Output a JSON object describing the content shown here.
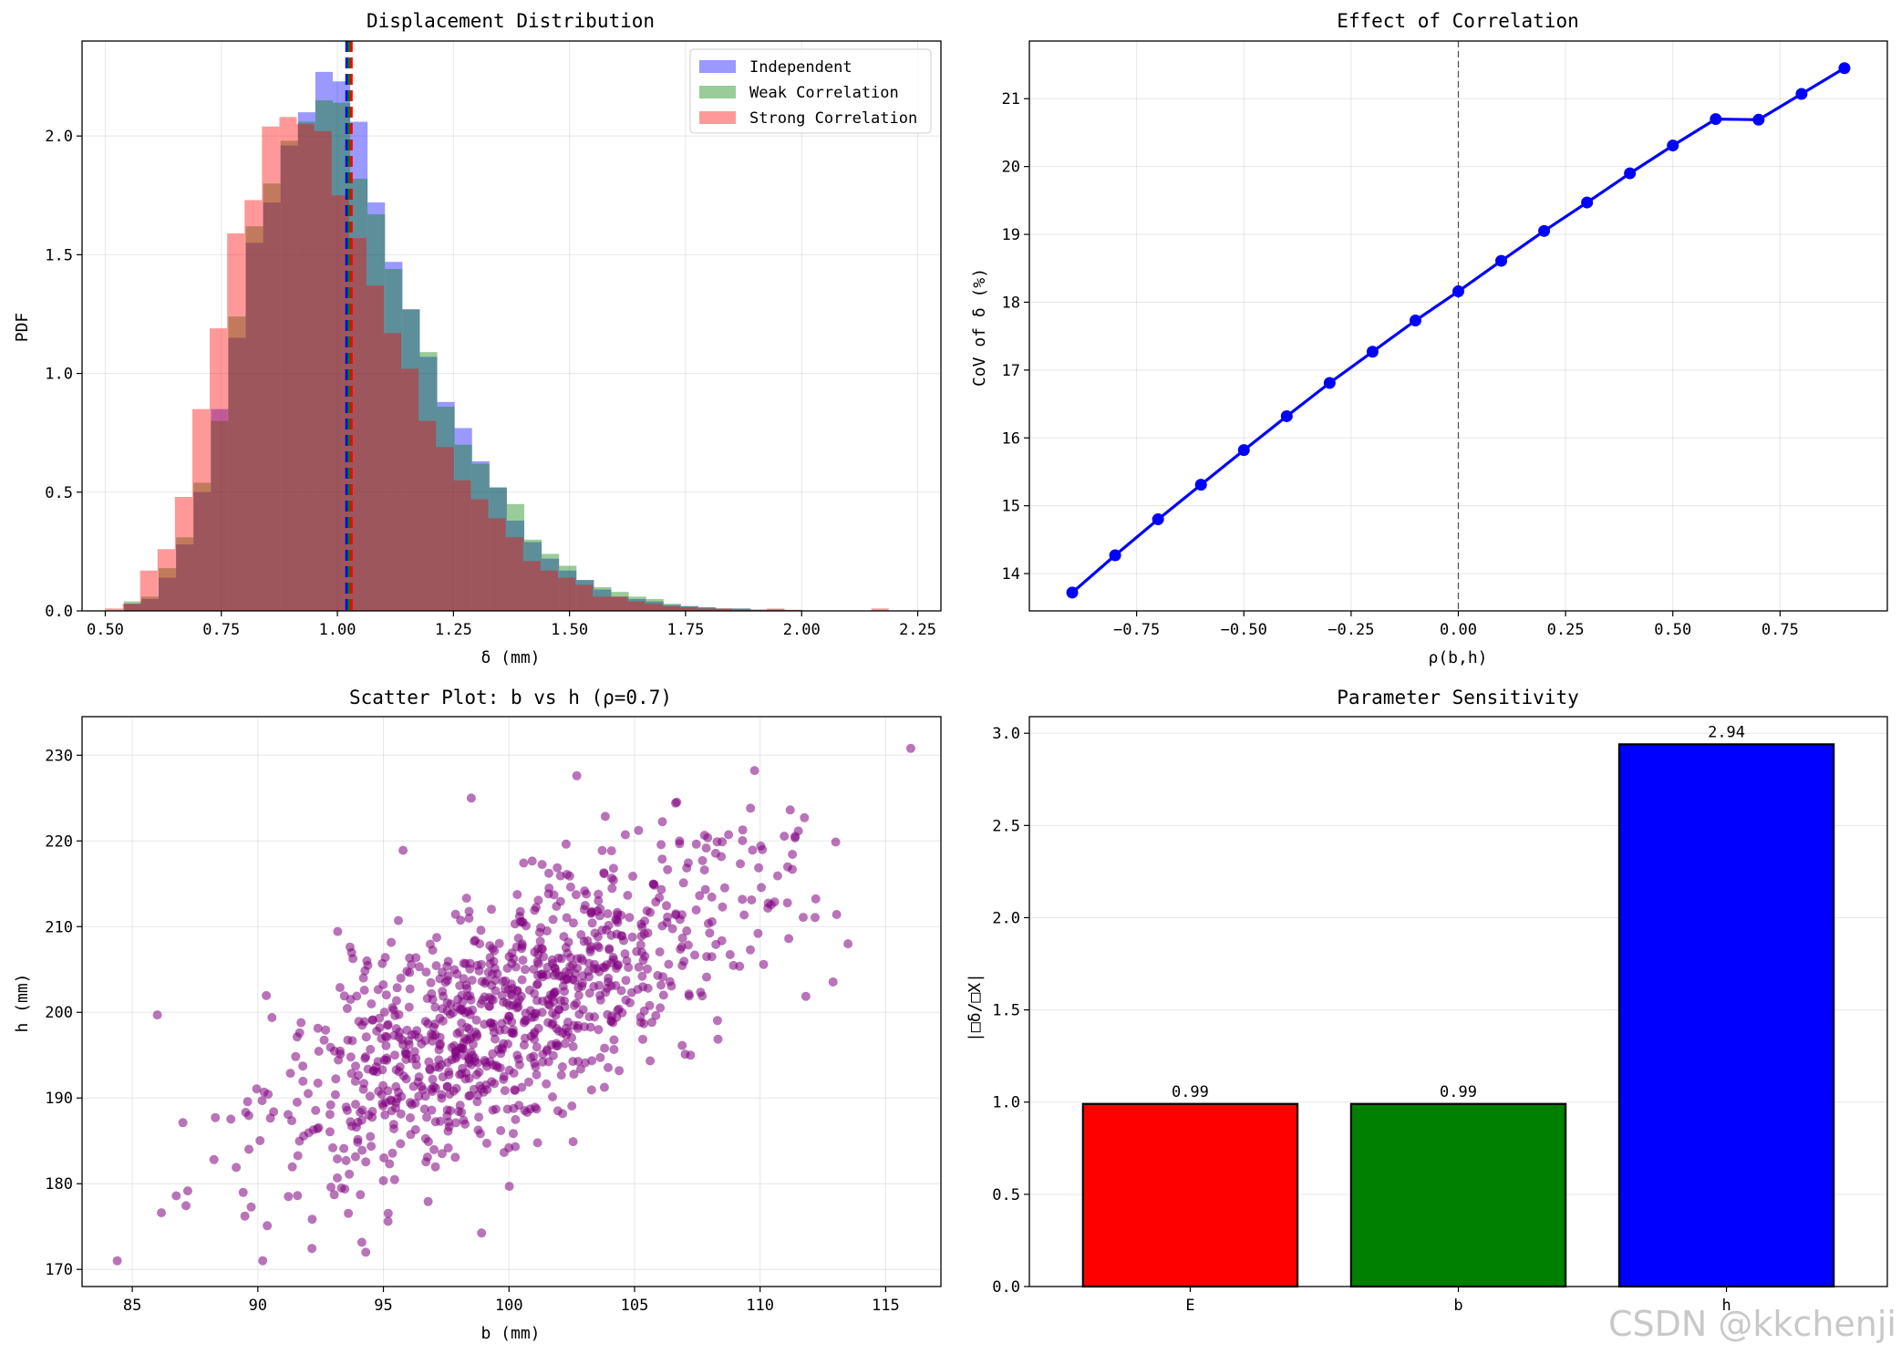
{
  "watermark": "CSDN @kkchenji",
  "chart_data": [
    {
      "type": "histogram",
      "title": "Displacement Distribution",
      "xlabel": "δ (mm)",
      "ylabel": "PDF",
      "xlim": [
        0.45,
        2.3
      ],
      "ylim": [
        0,
        2.4
      ],
      "xticks": [
        0.5,
        0.75,
        1.0,
        1.25,
        1.5,
        1.75,
        2.0,
        2.25
      ],
      "xtick_labels": [
        "0.50",
        "0.75",
        "1.00",
        "1.25",
        "1.50",
        "1.75",
        "2.00",
        "2.25"
      ],
      "yticks": [
        0,
        0.5,
        1.0,
        1.5,
        2.0
      ],
      "ytick_labels": [
        "0.0",
        "0.5",
        "1.0",
        "1.5",
        "2.0"
      ],
      "grid": true,
      "legend_position": "top-right",
      "bin_width": 0.0375,
      "series": [
        {
          "name": "Independent",
          "color": "#0000ff",
          "alpha": 0.4,
          "mean": 1.02,
          "bin_start": 0.54,
          "values": [
            0.03,
            0.05,
            0.14,
            0.28,
            0.5,
            0.85,
            1.15,
            1.55,
            1.72,
            1.96,
            2.1,
            2.27,
            2.23,
            2.06,
            1.72,
            1.47,
            1.27,
            1.07,
            0.88,
            0.77,
            0.63,
            0.52,
            0.38,
            0.29,
            0.22,
            0.17,
            0.13,
            0.09,
            0.06,
            0.05,
            0.04,
            0.025,
            0.02,
            0.015,
            0.01,
            0.01,
            0.005,
            0.005,
            0.003,
            0.002
          ]
        },
        {
          "name": "Weak Correlation",
          "color": "#008000",
          "alpha": 0.4,
          "mean": 1.025,
          "bin_start": 0.54,
          "values": [
            0.04,
            0.06,
            0.18,
            0.31,
            0.54,
            0.8,
            1.24,
            1.62,
            1.8,
            1.98,
            2.06,
            2.15,
            2.14,
            1.82,
            1.67,
            1.44,
            1.27,
            1.09,
            0.86,
            0.7,
            0.62,
            0.52,
            0.45,
            0.3,
            0.24,
            0.19,
            0.13,
            0.1,
            0.08,
            0.06,
            0.05,
            0.03,
            0.02,
            0.015,
            0.01,
            0.01,
            0.005,
            0.005,
            0.003,
            0.002
          ]
        },
        {
          "name": "Strong Correlation",
          "color": "#ff0000",
          "alpha": 0.4,
          "mean": 1.03,
          "bin_start": 0.5,
          "values": [
            0.01,
            0.03,
            0.17,
            0.26,
            0.48,
            0.85,
            1.19,
            1.59,
            1.73,
            2.04,
            2.08,
            2.05,
            2.02,
            1.75,
            1.57,
            1.37,
            1.17,
            1.02,
            0.8,
            0.69,
            0.55,
            0.47,
            0.39,
            0.31,
            0.21,
            0.17,
            0.14,
            0.11,
            0.06,
            0.06,
            0.04,
            0.03,
            0.02,
            0.015,
            0.01,
            0.01,
            0.005,
            0.005,
            0.01,
            0.005,
            0.0,
            0.0,
            0.0,
            0.0,
            0.01
          ]
        }
      ]
    },
    {
      "type": "line",
      "title": "Effect of Correlation",
      "xlabel": "ρ(b,h)",
      "ylabel": "CoV of δ (%)",
      "xlim": [
        -1.0,
        1.0
      ],
      "ylim": [
        13.45,
        21.85
      ],
      "xticks": [
        -0.75,
        -0.5,
        -0.25,
        0.0,
        0.25,
        0.5,
        0.75
      ],
      "xtick_labels": [
        "−0.75",
        "−0.50",
        "−0.25",
        "0.00",
        "0.25",
        "0.50",
        "0.75"
      ],
      "yticks": [
        14,
        15,
        16,
        17,
        18,
        19,
        20,
        21
      ],
      "ytick_labels": [
        "14",
        "15",
        "16",
        "17",
        "18",
        "19",
        "20",
        "21"
      ],
      "grid": true,
      "vline": 0.0,
      "color": "#0000ff",
      "x": [
        -0.9,
        -0.8,
        -0.7,
        -0.6,
        -0.5,
        -0.4,
        -0.3,
        -0.2,
        -0.1,
        0.0,
        0.1,
        0.2,
        0.3,
        0.4,
        0.5,
        0.6,
        0.7,
        0.8,
        0.9
      ],
      "y": [
        13.72,
        14.27,
        14.8,
        15.31,
        15.82,
        16.32,
        16.81,
        17.27,
        17.73,
        18.16,
        18.61,
        19.05,
        19.47,
        19.9,
        20.31,
        20.7,
        20.69,
        21.07,
        21.45
      ]
    },
    {
      "type": "scatter",
      "title": "Scatter Plot: b vs h (ρ=0.7)",
      "xlabel": "b (mm)",
      "ylabel": "h (mm)",
      "xlim": [
        83,
        117.2
      ],
      "ylim": [
        168,
        234.5
      ],
      "xticks": [
        85,
        90,
        95,
        100,
        105,
        110,
        115
      ],
      "xtick_labels": [
        "85",
        "90",
        "95",
        "100",
        "105",
        "110",
        "115"
      ],
      "yticks": [
        170,
        180,
        190,
        200,
        210,
        220,
        230
      ],
      "ytick_labels": [
        "170",
        "180",
        "190",
        "200",
        "210",
        "220",
        "230"
      ],
      "grid": true,
      "color": "#800080",
      "alpha": 0.55,
      "n_points": 1000,
      "mean": [
        100,
        200
      ],
      "std": [
        5,
        10
      ],
      "rho": 0.7,
      "seed": 7,
      "outliers": [
        [
          116,
          230.8
        ],
        [
          84.4,
          171
        ],
        [
          86,
          199.7
        ],
        [
          94.3,
          172
        ],
        [
          102.7,
          227.6
        ],
        [
          98.5,
          225
        ],
        [
          113.5,
          208
        ]
      ]
    },
    {
      "type": "bar",
      "title": "Parameter Sensitivity",
      "xlabel": "",
      "ylabel": "|□δ/□X|",
      "categories": [
        "E",
        "b",
        "h"
      ],
      "values": [
        0.99,
        0.99,
        2.94
      ],
      "value_labels": [
        "0.99",
        "0.99",
        "2.94"
      ],
      "colors": [
        "#ff0000",
        "#008000",
        "#0000ff"
      ],
      "ylim": [
        0,
        3.09
      ],
      "yticks": [
        0,
        0.5,
        1.0,
        1.5,
        2.0,
        2.5,
        3.0
      ],
      "ytick_labels": [
        "0.0",
        "0.5",
        "1.0",
        "1.5",
        "2.0",
        "2.5",
        "3.0"
      ],
      "grid": true
    }
  ]
}
